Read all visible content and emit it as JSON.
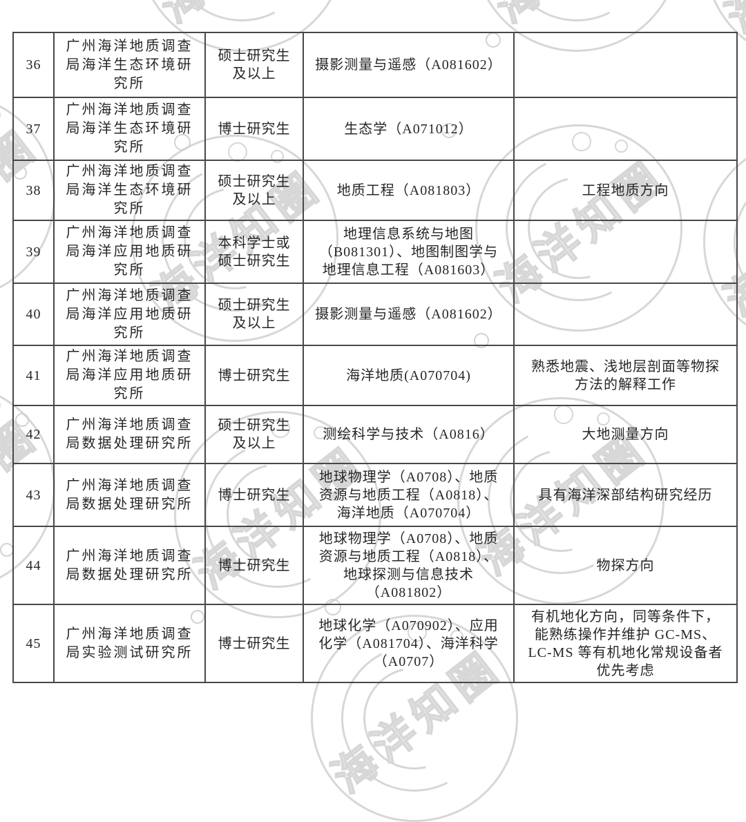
{
  "page": {
    "background": "#ffffff"
  },
  "watermark": {
    "text": "海洋知圈",
    "color": "#d7d7d7"
  },
  "table": {
    "rows": [
      {
        "seq": "36",
        "org": "广州海洋地质调查\n局海洋生态环境研\n究所",
        "edu": "硕士研究生\n及以上",
        "major": "摄影测量与遥感（A081602）",
        "note": ""
      },
      {
        "seq": "37",
        "org": "广州海洋地质调查\n局海洋生态环境研\n究所",
        "edu": "博士研究生",
        "major": "生态学（A071012）",
        "note": ""
      },
      {
        "seq": "38",
        "org": "广州海洋地质调查\n局海洋生态环境研\n究所",
        "edu": "硕士研究生\n及以上",
        "major": "地质工程（A081803）",
        "note": "工程地质方向"
      },
      {
        "seq": "39",
        "org": "广州海洋地质调查\n局海洋应用地质研\n究所",
        "edu": "本科学士或\n硕士研究生",
        "major": "地理信息系统与地图\n（B081301）、地图制图学与\n地理信息工程（A081603）",
        "note": ""
      },
      {
        "seq": "40",
        "org": "广州海洋地质调查\n局海洋应用地质研\n究所",
        "edu": "硕士研究生\n及以上",
        "major": "摄影测量与遥感（A081602）",
        "note": ""
      },
      {
        "seq": "41",
        "org": "广州海洋地质调查\n局海洋应用地质研\n究所",
        "edu": "博士研究生",
        "major": "海洋地质(A070704)",
        "note": "熟悉地震、浅地层剖面等物探\n方法的解释工作"
      },
      {
        "seq": "42",
        "org": "广州海洋地质调查\n局数据处理研究所",
        "edu": "硕士研究生\n及以上",
        "major": "测绘科学与技术（A0816）",
        "note": "大地测量方向"
      },
      {
        "seq": "43",
        "org": "广州海洋地质调查\n局数据处理研究所",
        "edu": "博士研究生",
        "major": "地球物理学（A0708）、地质\n资源与地质工程（A0818）、\n海洋地质（A070704）",
        "note": "具有海洋深部结构研究经历"
      },
      {
        "seq": "44",
        "org": "广州海洋地质调查\n局数据处理研究所",
        "edu": "博士研究生",
        "major": "地球物理学（A0708）、地质\n资源与地质工程（A0818）、\n地球探测与信息技术\n（A081802）",
        "note": "物探方向"
      },
      {
        "seq": "45",
        "org": "广州海洋地质调查\n局实验测试研究所",
        "edu": "博士研究生",
        "major": "地球化学（A070902）、应用\n化学（A081704）、海洋科学\n（A0707）",
        "note": "有机地化方向，同等条件下，\n能熟练操作并维护 GC-MS、\nLC-MS 等有机地化常规设备者\n优先考虑"
      }
    ]
  }
}
